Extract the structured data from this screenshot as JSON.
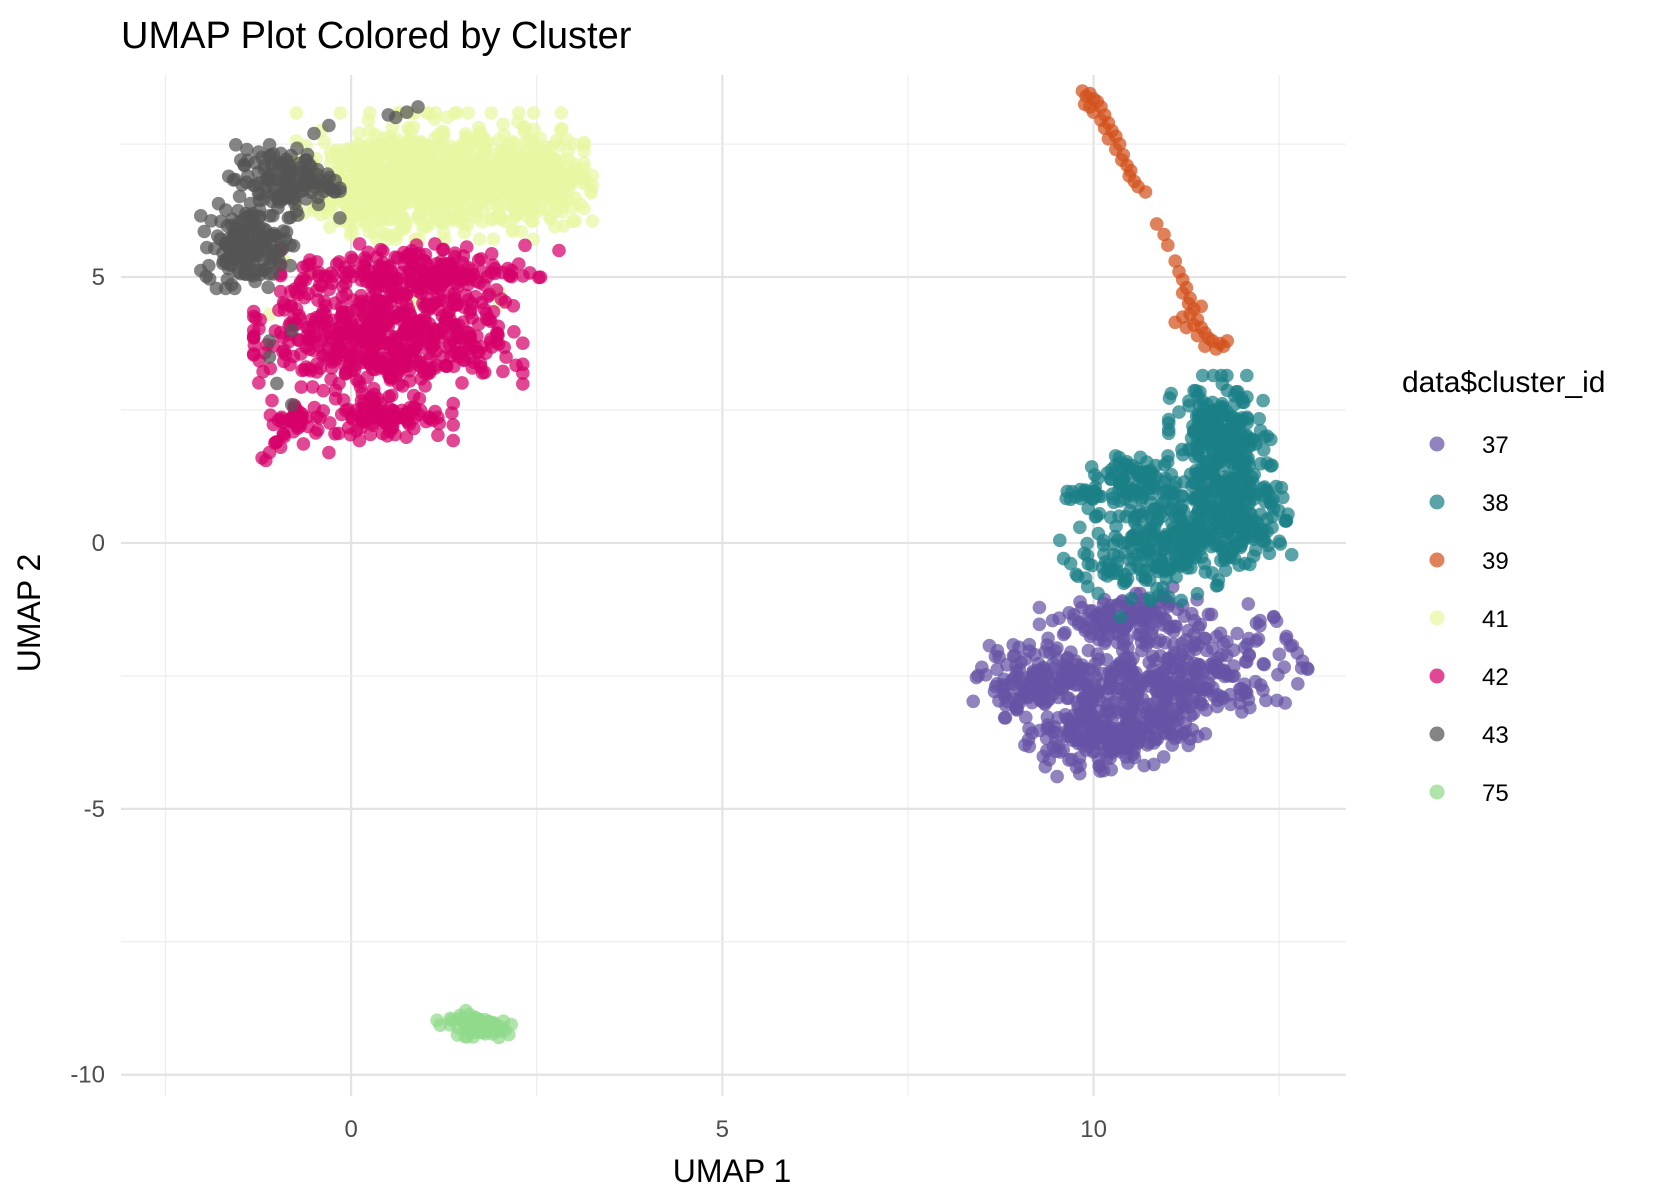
{
  "chart_data": {
    "type": "scatter",
    "title": "UMAP Plot Colored by Cluster",
    "xlabel": "UMAP 1",
    "ylabel": "UMAP 2",
    "xlim": [
      -3.1,
      13.4
    ],
    "ylim": [
      -10.4,
      8.8
    ],
    "x_ticks": [
      0,
      5,
      10
    ],
    "y_ticks": [
      -10,
      -5,
      0,
      5
    ],
    "x_tick_labels": [
      "0",
      "5",
      "10"
    ],
    "y_tick_labels": [
      "-10",
      "-5",
      "0",
      "5"
    ],
    "grid": true,
    "legend": {
      "title": "data$cluster_id",
      "position": "right"
    },
    "series": [
      {
        "name": "37",
        "color": "#6753A5",
        "clusters": [
          {
            "cx": 10.9,
            "cy": -2.7,
            "rx": 1.55,
            "ry": 0.85,
            "rot": 25,
            "n": 420
          },
          {
            "cx": 9.3,
            "cy": -2.6,
            "rx": 0.75,
            "ry": 0.55,
            "rot": 0,
            "n": 160
          },
          {
            "cx": 10.2,
            "cy": -3.7,
            "rx": 0.9,
            "ry": 0.45,
            "rot": 10,
            "n": 180
          },
          {
            "cx": 10.4,
            "cy": -1.4,
            "rx": 0.9,
            "ry": 0.4,
            "rot": 15,
            "n": 140
          }
        ]
      },
      {
        "name": "38",
        "color": "#1A7F86",
        "clusters": [
          {
            "cx": 11.1,
            "cy": 0.1,
            "rx": 1.2,
            "ry": 0.85,
            "rot": 30,
            "n": 340
          },
          {
            "cx": 11.7,
            "cy": 1.9,
            "rx": 0.55,
            "ry": 1.0,
            "rot": 0,
            "n": 230
          },
          {
            "cx": 12.0,
            "cy": 0.7,
            "rx": 0.5,
            "ry": 0.9,
            "rot": 0,
            "n": 150
          },
          {
            "cx": 10.6,
            "cy": 1.2,
            "rx": 0.5,
            "ry": 0.35,
            "rot": 0,
            "n": 80
          },
          {
            "cx": 9.9,
            "cy": 0.9,
            "rx": 0.25,
            "ry": 0.12,
            "rot": 0,
            "n": 22
          }
        ]
      },
      {
        "name": "39",
        "color": "#D2501A",
        "points": [
          [
            9.85,
            8.5
          ],
          [
            9.9,
            8.4
          ],
          [
            9.95,
            8.45
          ],
          [
            10.0,
            8.35
          ],
          [
            10.05,
            8.3
          ],
          [
            9.88,
            8.25
          ],
          [
            9.95,
            8.2
          ],
          [
            10.1,
            8.2
          ],
          [
            10.0,
            8.1
          ],
          [
            10.15,
            8.05
          ],
          [
            10.1,
            7.95
          ],
          [
            10.2,
            7.9
          ],
          [
            10.15,
            7.8
          ],
          [
            10.25,
            7.75
          ],
          [
            10.3,
            7.65
          ],
          [
            10.2,
            7.6
          ],
          [
            10.35,
            7.5
          ],
          [
            10.3,
            7.4
          ],
          [
            10.4,
            7.3
          ],
          [
            10.38,
            7.2
          ],
          [
            10.45,
            7.1
          ],
          [
            10.5,
            7.0
          ],
          [
            10.48,
            6.9
          ],
          [
            10.55,
            6.8
          ],
          [
            10.6,
            6.7
          ],
          [
            10.7,
            6.6
          ],
          [
            10.85,
            6.0
          ],
          [
            10.95,
            5.8
          ],
          [
            11.0,
            5.6
          ],
          [
            11.1,
            5.3
          ],
          [
            11.15,
            5.1
          ],
          [
            11.2,
            4.95
          ],
          [
            11.25,
            4.8
          ],
          [
            11.2,
            4.7
          ],
          [
            11.3,
            4.6
          ],
          [
            11.28,
            4.5
          ],
          [
            11.35,
            4.4
          ],
          [
            11.3,
            4.3
          ],
          [
            11.4,
            4.2
          ],
          [
            11.35,
            4.1
          ],
          [
            11.45,
            4.05
          ],
          [
            11.5,
            3.95
          ],
          [
            11.4,
            3.9
          ],
          [
            11.55,
            3.85
          ],
          [
            11.6,
            3.8
          ],
          [
            11.7,
            3.75
          ],
          [
            11.5,
            3.7
          ],
          [
            11.65,
            3.65
          ],
          [
            11.75,
            3.7
          ],
          [
            11.8,
            3.8
          ],
          [
            11.2,
            4.25
          ],
          [
            11.1,
            4.15
          ],
          [
            11.45,
            4.45
          ],
          [
            11.25,
            4.05
          ]
        ]
      },
      {
        "name": "41",
        "color": "#E7F7A2",
        "clusters": [
          {
            "cx": 1.2,
            "cy": 6.9,
            "rx": 1.55,
            "ry": 0.95,
            "rot": 0,
            "n": 700
          },
          {
            "cx": 2.5,
            "cy": 6.8,
            "rx": 0.6,
            "ry": 0.6,
            "rot": 0,
            "n": 150
          },
          {
            "cx": 0.2,
            "cy": 6.6,
            "rx": 0.7,
            "ry": 0.7,
            "rot": 0,
            "n": 150
          }
        ],
        "points": [
          [
            0.3,
            4.3
          ],
          [
            0.9,
            4.5
          ],
          [
            1.3,
            4.2
          ],
          [
            2.0,
            4.7
          ],
          [
            0.9,
            3.8
          ],
          [
            -1.1,
            4.3
          ],
          [
            -0.9,
            5.3
          ],
          [
            0.2,
            3.6
          ],
          [
            2.0,
            4.5
          ],
          [
            1.3,
            4.5
          ],
          [
            0.8,
            4.6
          ],
          [
            -1.0,
            5.2
          ],
          [
            -0.5,
            5.1
          ]
        ]
      },
      {
        "name": "42",
        "color": "#D6006A",
        "clusters": [
          {
            "cx": 0.5,
            "cy": 3.9,
            "rx": 1.45,
            "ry": 0.95,
            "rot": 0,
            "n": 560
          },
          {
            "cx": 0.8,
            "cy": 5.1,
            "rx": 1.4,
            "ry": 0.45,
            "rot": 0,
            "n": 200
          },
          {
            "cx": -0.7,
            "cy": 2.3,
            "rx": 0.35,
            "ry": 0.35,
            "rot": 0,
            "n": 40
          },
          {
            "cx": 0.5,
            "cy": 2.4,
            "rx": 0.7,
            "ry": 0.4,
            "rot": 0,
            "n": 100
          }
        ],
        "points": [
          [
            -1.2,
            1.6
          ],
          [
            -1.1,
            1.7
          ],
          [
            -1.0,
            1.9
          ],
          [
            -0.9,
            2.0
          ],
          [
            -1.15,
            1.55
          ],
          [
            -0.95,
            1.8
          ],
          [
            -0.3,
            1.7
          ],
          [
            2.8,
            5.5
          ]
        ]
      },
      {
        "name": "43",
        "color": "#555555",
        "clusters": [
          {
            "cx": -1.4,
            "cy": 5.6,
            "rx": 0.5,
            "ry": 0.65,
            "rot": 0,
            "n": 160
          },
          {
            "cx": -0.9,
            "cy": 6.8,
            "rx": 0.6,
            "ry": 0.55,
            "rot": 0,
            "n": 140
          }
        ],
        "points": [
          [
            -0.5,
            7.7
          ],
          [
            -0.3,
            7.85
          ],
          [
            0.6,
            8.0
          ],
          [
            0.9,
            8.2
          ],
          [
            -1.1,
            3.8
          ],
          [
            -0.8,
            4.0
          ],
          [
            -1.0,
            3.0
          ],
          [
            -0.8,
            2.6
          ],
          [
            -1.1,
            3.5
          ],
          [
            -1.5,
            5.3
          ],
          [
            -1.6,
            5.6
          ],
          [
            -0.6,
            7.2
          ],
          [
            0.5,
            8.05
          ],
          [
            0.75,
            8.1
          ]
        ]
      },
      {
        "name": "75",
        "color": "#90D98A",
        "clusters": [
          {
            "cx": 1.65,
            "cy": -9.05,
            "rx": 0.4,
            "ry": 0.2,
            "rot": -10,
            "n": 70
          }
        ]
      }
    ]
  }
}
